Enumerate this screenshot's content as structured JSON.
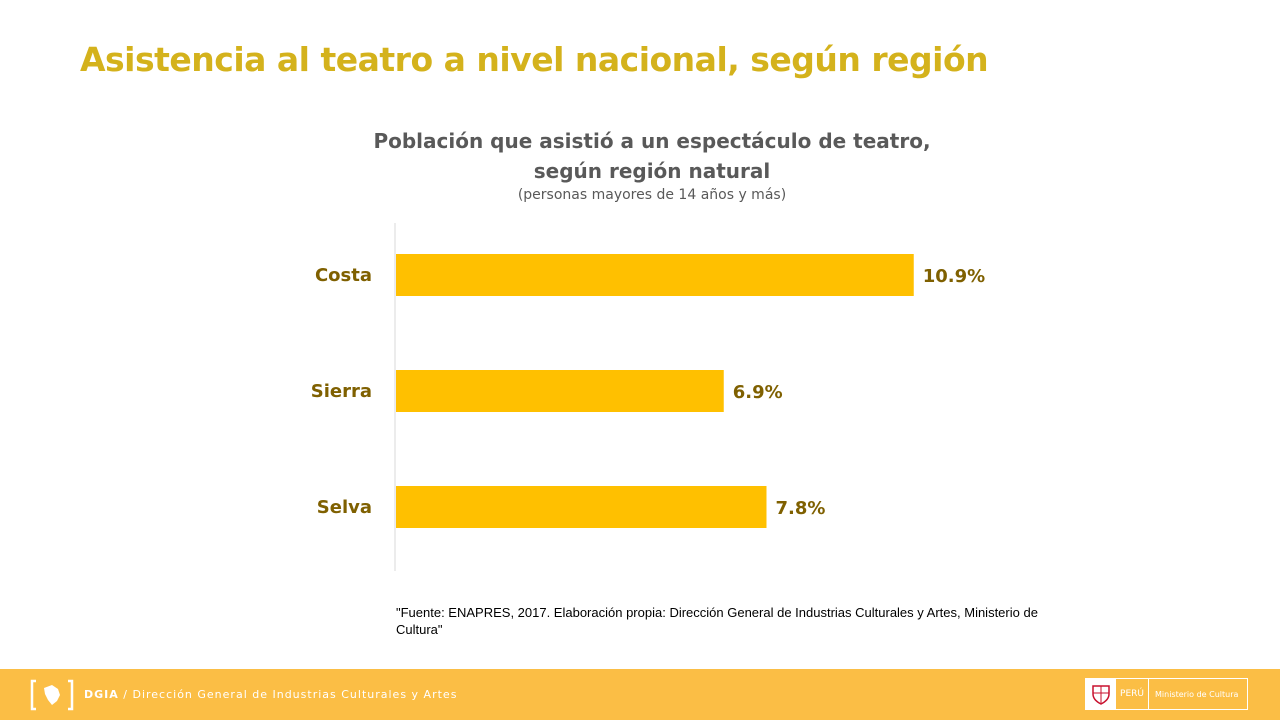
{
  "slide": {
    "title": "Asistencia al teatro a nivel nacional, según región"
  },
  "chart_data": {
    "type": "bar",
    "orientation": "horizontal",
    "title_line1": "Población que asistió a un espectáculo de teatro,",
    "title_line2": "según región natural",
    "subtitle": "(personas mayores de 14 años y más)",
    "categories": [
      "Costa",
      "Sierra",
      "Selva"
    ],
    "values": [
      10.9,
      6.9,
      7.8
    ],
    "value_labels": [
      "10.9%",
      "6.9%",
      "7.8%"
    ],
    "unit": "%",
    "xlim": [
      0,
      12
    ],
    "bar_color": "#FFC000",
    "label_color": "#7F6000"
  },
  "source": "\"Fuente: ENAPRES,  2017. Elaboración propia: Dirección General de Industrias Culturales y Artes, Ministerio de Cultura\"",
  "footer": {
    "acronym": "DGIA",
    "separator": " / ",
    "org": "Dirección General de Industrias Culturales y Artes",
    "badge_country": "PERÚ",
    "badge_ministry": "Ministerio de Cultura"
  }
}
